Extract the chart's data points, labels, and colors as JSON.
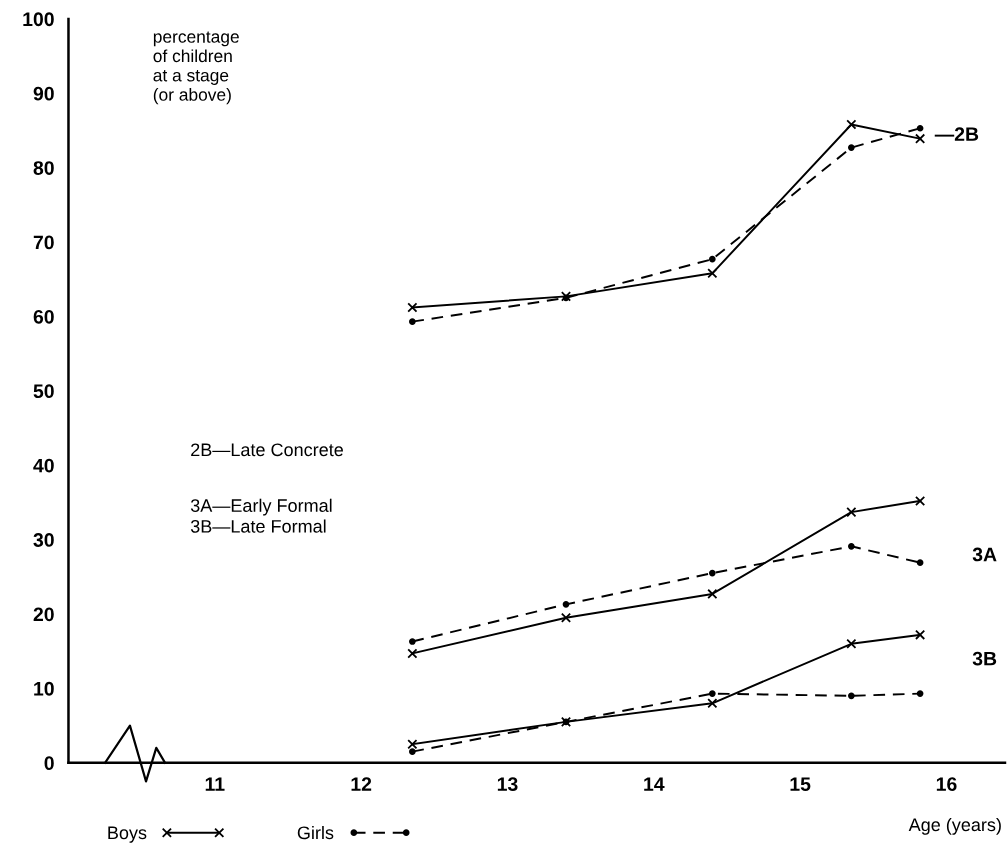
{
  "chart_data": {
    "type": "line",
    "xlabel": "Age (years)",
    "ylabel": "percentage\nof children\nat a stage\n(or above)",
    "xlim": [
      10.0,
      16.4
    ],
    "xticks": [
      11,
      12,
      13,
      14,
      15,
      16
    ],
    "ylim": [
      0,
      100
    ],
    "yticks": [
      0,
      10,
      20,
      30,
      40,
      50,
      60,
      70,
      80,
      90,
      100
    ],
    "grid": false,
    "legend": "bottom left",
    "x": [
      12.35,
      13.4,
      14.4,
      15.35,
      15.82
    ],
    "series": [
      {
        "name": "Boys",
        "color": "#000000",
        "marker": "cross",
        "line_style": "solid",
        "values": [
          61.2,
          62.7,
          65.8,
          85.8,
          83.9
        ]
      },
      {
        "name": "Girls",
        "color": "#000000",
        "marker": "circle",
        "line_style": "dashed",
        "values": [
          59.3,
          62.5,
          67.7,
          82.7,
          85.3
        ]
      },
      {
        "color": "#000000",
        "marker": "cross",
        "line_style": "solid",
        "values": [
          14.7,
          19.5,
          22.7,
          33.7,
          35.2
        ]
      },
      {
        "color": "#000000",
        "marker": "circle",
        "line_style": "dashed",
        "values": [
          16.3,
          21.3,
          25.5,
          29.1,
          26.9
        ]
      },
      {
        "color": "#000000",
        "marker": "cross",
        "line_style": "solid",
        "values": [
          2.5,
          5.5,
          8.0,
          16.0,
          17.2
        ]
      },
      {
        "color": "#000000",
        "marker": "circle",
        "line_style": "dashed",
        "values": [
          1.5,
          5.5,
          9.3,
          9.0,
          9.3
        ]
      }
    ],
    "annotations": [
      "—2B",
      "3A",
      "3B",
      "2B—Late Concrete",
      "3A—Early Formal\n3B—Late Formal"
    ]
  }
}
